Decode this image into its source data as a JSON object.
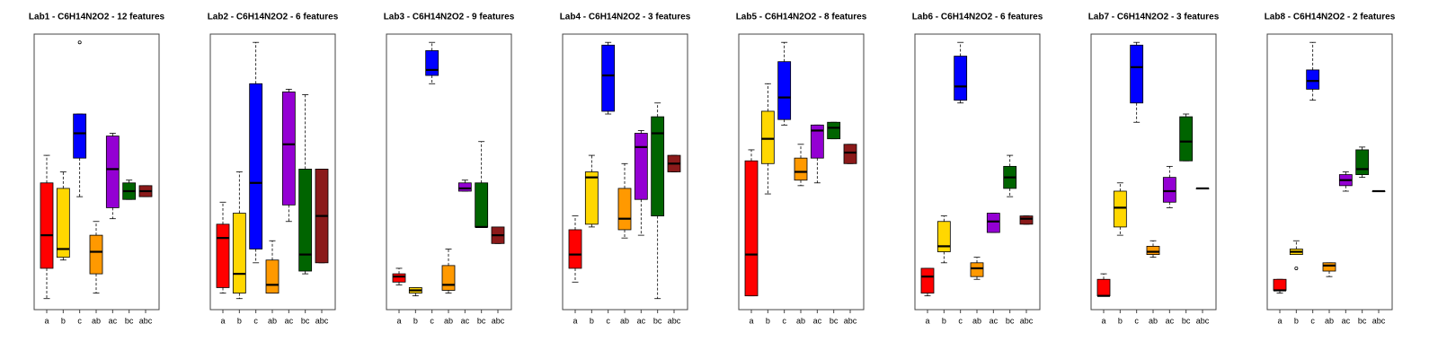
{
  "chart_data": [
    {
      "type": "box",
      "title": "Lab1 - C6H14N2O2 - 12 features",
      "categories": [
        "a",
        "b",
        "c",
        "ab",
        "ac",
        "bc",
        "abc"
      ],
      "colors": [
        "#ff0000",
        "#ffd700",
        "#0000ff",
        "#ff9900",
        "#9400d3",
        "#006400",
        "#8b1a1a"
      ],
      "ylim": [
        0,
        100
      ],
      "boxes": [
        {
          "whislo": 4,
          "q1": 15,
          "med": 27,
          "q3": 46,
          "whishi": 56
        },
        {
          "whislo": 18,
          "q1": 19,
          "med": 22,
          "q3": 44,
          "whishi": 50
        },
        {
          "whislo": 41,
          "q1": 55,
          "med": 64,
          "q3": 71,
          "whishi": 71,
          "fliers": [
            97
          ]
        },
        {
          "whislo": 6,
          "q1": 13,
          "med": 21,
          "q3": 27,
          "whishi": 32
        },
        {
          "whislo": 33,
          "q1": 37,
          "med": 51,
          "q3": 63,
          "whishi": 64
        },
        {
          "whislo": 40,
          "q1": 40,
          "med": 43,
          "q3": 46,
          "whishi": 47
        },
        {
          "whislo": 41,
          "q1": 41,
          "med": 43,
          "q3": 45,
          "whishi": 45
        }
      ]
    },
    {
      "type": "box",
      "title": "Lab2 - C6H14N2O2 - 6 features",
      "categories": [
        "a",
        "b",
        "c",
        "ab",
        "ac",
        "bc",
        "abc"
      ],
      "colors": [
        "#ff0000",
        "#ffd700",
        "#0000ff",
        "#ff9900",
        "#9400d3",
        "#006400",
        "#8b1a1a"
      ],
      "ylim": [
        0,
        100
      ],
      "boxes": [
        {
          "whislo": 6,
          "q1": 8,
          "med": 26,
          "q3": 31,
          "whishi": 39
        },
        {
          "whislo": 4,
          "q1": 6,
          "med": 13,
          "q3": 35,
          "whishi": 50
        },
        {
          "whislo": 17,
          "q1": 22,
          "med": 46,
          "q3": 82,
          "whishi": 97
        },
        {
          "whislo": 6,
          "q1": 6,
          "med": 9,
          "q3": 18,
          "whishi": 25
        },
        {
          "whislo": 32,
          "q1": 38,
          "med": 60,
          "q3": 79,
          "whishi": 80
        },
        {
          "whislo": 13,
          "q1": 14,
          "med": 20,
          "q3": 51,
          "whishi": 78
        },
        {
          "whislo": 17,
          "q1": 17,
          "med": 34,
          "q3": 51,
          "whishi": 51
        }
      ]
    },
    {
      "type": "box",
      "title": "Lab3 - C6H14N2O2 - 9 features",
      "categories": [
        "a",
        "b",
        "c",
        "ab",
        "ac",
        "bc",
        "abc"
      ],
      "colors": [
        "#ff0000",
        "#ffd700",
        "#0000ff",
        "#ff9900",
        "#9400d3",
        "#006400",
        "#8b1a1a"
      ],
      "ylim": [
        0,
        100
      ],
      "boxes": [
        {
          "whislo": 9,
          "q1": 10,
          "med": 12,
          "q3": 13,
          "whishi": 15
        },
        {
          "whislo": 5,
          "q1": 6,
          "med": 7,
          "q3": 8,
          "whishi": 8
        },
        {
          "whislo": 82,
          "q1": 85,
          "med": 87,
          "q3": 94,
          "whishi": 97
        },
        {
          "whislo": 6,
          "q1": 7,
          "med": 9,
          "q3": 16,
          "whishi": 22
        },
        {
          "whislo": 43,
          "q1": 43,
          "med": 44,
          "q3": 46,
          "whishi": 47
        },
        {
          "whislo": 30,
          "q1": 30,
          "med": 30,
          "q3": 46,
          "whishi": 61
        },
        {
          "whislo": 24,
          "q1": 24,
          "med": 27,
          "q3": 30,
          "whishi": 30
        }
      ]
    },
    {
      "type": "box",
      "title": "Lab4 - C6H14N2O2 - 3 features",
      "categories": [
        "a",
        "b",
        "c",
        "ab",
        "ac",
        "bc",
        "abc"
      ],
      "colors": [
        "#ff0000",
        "#ffd700",
        "#0000ff",
        "#ff9900",
        "#9400d3",
        "#006400",
        "#8b1a1a"
      ],
      "ylim": [
        0,
        100
      ],
      "boxes": [
        {
          "whislo": 10,
          "q1": 15,
          "med": 20,
          "q3": 29,
          "whishi": 34
        },
        {
          "whislo": 30,
          "q1": 31,
          "med": 48,
          "q3": 50,
          "whishi": 56
        },
        {
          "whislo": 71,
          "q1": 72,
          "med": 85,
          "q3": 96,
          "whishi": 97
        },
        {
          "whislo": 26,
          "q1": 29,
          "med": 33,
          "q3": 44,
          "whishi": 53
        },
        {
          "whislo": 27,
          "q1": 40,
          "med": 59,
          "q3": 64,
          "whishi": 65
        },
        {
          "whislo": 4,
          "q1": 34,
          "med": 64,
          "q3": 70,
          "whishi": 75
        },
        {
          "whislo": 50,
          "q1": 50,
          "med": 53,
          "q3": 56,
          "whishi": 56
        }
      ]
    },
    {
      "type": "box",
      "title": "Lab5 - C6H14N2O2 - 8 features",
      "categories": [
        "a",
        "b",
        "c",
        "ab",
        "ac",
        "bc",
        "abc"
      ],
      "colors": [
        "#ff0000",
        "#ffd700",
        "#0000ff",
        "#ff9900",
        "#9400d3",
        "#006400",
        "#8b1a1a"
      ],
      "ylim": [
        0,
        100
      ],
      "boxes": [
        {
          "whislo": 5,
          "q1": 5,
          "med": 20,
          "q3": 54,
          "whishi": 58
        },
        {
          "whislo": 42,
          "q1": 53,
          "med": 62,
          "q3": 72,
          "whishi": 82
        },
        {
          "whislo": 67,
          "q1": 69,
          "med": 77,
          "q3": 90,
          "whishi": 97
        },
        {
          "whislo": 45,
          "q1": 47,
          "med": 50,
          "q3": 55,
          "whishi": 60
        },
        {
          "whislo": 46,
          "q1": 55,
          "med": 65,
          "q3": 67,
          "whishi": 67
        },
        {
          "whislo": 62,
          "q1": 62,
          "med": 66,
          "q3": 68,
          "whishi": 68
        },
        {
          "whislo": 53,
          "q1": 53,
          "med": 57,
          "q3": 60,
          "whishi": 60
        }
      ]
    },
    {
      "type": "box",
      "title": "Lab6 - C6H14N2O2 - 6 features",
      "categories": [
        "a",
        "b",
        "c",
        "ab",
        "ac",
        "bc",
        "abc"
      ],
      "colors": [
        "#ff0000",
        "#ffd700",
        "#0000ff",
        "#ff9900",
        "#9400d3",
        "#006400",
        "#8b1a1a"
      ],
      "ylim": [
        0,
        100
      ],
      "boxes": [
        {
          "whislo": 5,
          "q1": 6,
          "med": 12,
          "q3": 15,
          "whishi": 15
        },
        {
          "whislo": 17,
          "q1": 21,
          "med": 23,
          "q3": 32,
          "whishi": 34
        },
        {
          "whislo": 75,
          "q1": 76,
          "med": 81,
          "q3": 92,
          "whishi": 97
        },
        {
          "whislo": 11,
          "q1": 12,
          "med": 15,
          "q3": 17,
          "whishi": 19
        },
        {
          "whislo": 28,
          "q1": 28,
          "med": 32,
          "q3": 35,
          "whishi": 35
        },
        {
          "whislo": 41,
          "q1": 44,
          "med": 48,
          "q3": 52,
          "whishi": 56
        },
        {
          "whislo": 31,
          "q1": 31,
          "med": 33,
          "q3": 34,
          "whishi": 34
        }
      ]
    },
    {
      "type": "box",
      "title": "Lab7 - C6H14N2O2 - 3 features",
      "categories": [
        "a",
        "b",
        "c",
        "ab",
        "ac",
        "bc",
        "abc"
      ],
      "colors": [
        "#ff0000",
        "#ffd700",
        "#0000ff",
        "#ff9900",
        "#9400d3",
        "#006400",
        "#8b1a1a"
      ],
      "ylim": [
        0,
        100
      ],
      "boxes": [
        {
          "whislo": 5,
          "q1": 5,
          "med": 5,
          "q3": 11,
          "whishi": 13
        },
        {
          "whislo": 27,
          "q1": 30,
          "med": 37,
          "q3": 43,
          "whishi": 46
        },
        {
          "whislo": 68,
          "q1": 75,
          "med": 88,
          "q3": 96,
          "whishi": 97
        },
        {
          "whislo": 19,
          "q1": 20,
          "med": 21,
          "q3": 23,
          "whishi": 25
        },
        {
          "whislo": 37,
          "q1": 39,
          "med": 43,
          "q3": 48,
          "whishi": 52
        },
        {
          "whislo": 54,
          "q1": 54,
          "med": 61,
          "q3": 70,
          "whishi": 71
        },
        {
          "whislo": 44,
          "q1": 44,
          "med": 44,
          "q3": 44,
          "whishi": 44
        }
      ]
    },
    {
      "type": "box",
      "title": "Lab8 - C6H14N2O2 - 2 features",
      "categories": [
        "a",
        "b",
        "c",
        "ab",
        "ac",
        "bc",
        "abc"
      ],
      "colors": [
        "#ff0000",
        "#ffd700",
        "#0000ff",
        "#ff9900",
        "#9400d3",
        "#006400",
        "#8b1a1a"
      ],
      "ylim": [
        0,
        100
      ],
      "boxes": [
        {
          "whislo": 6,
          "q1": 7,
          "med": 7,
          "q3": 11,
          "whishi": 11
        },
        {
          "whislo": 20,
          "q1": 20,
          "med": 21,
          "q3": 22,
          "whishi": 25,
          "fliers": [
            15
          ]
        },
        {
          "whislo": 76,
          "q1": 80,
          "med": 83,
          "q3": 87,
          "whishi": 97
        },
        {
          "whislo": 12,
          "q1": 14,
          "med": 16,
          "q3": 17,
          "whishi": 17
        },
        {
          "whislo": 43,
          "q1": 45,
          "med": 47,
          "q3": 49,
          "whishi": 50
        },
        {
          "whislo": 48,
          "q1": 49,
          "med": 51,
          "q3": 58,
          "whishi": 59
        },
        {
          "whislo": 43,
          "q1": 43,
          "med": 43,
          "q3": 43,
          "whishi": 43
        }
      ]
    }
  ]
}
